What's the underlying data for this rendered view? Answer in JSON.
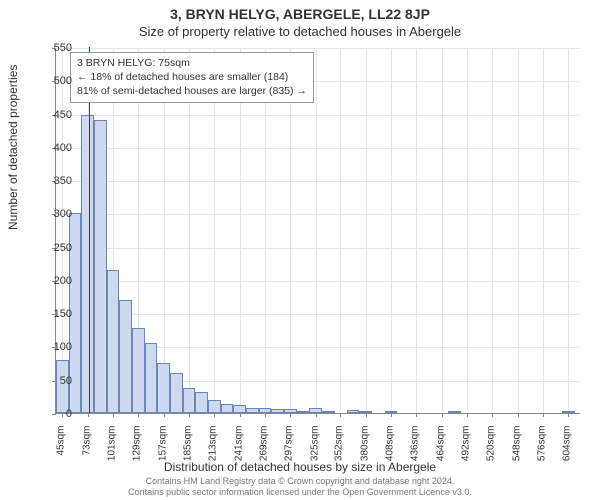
{
  "header": {
    "address": "3, BRYN HELYG, ABERGELE, LL22 8JP",
    "subtitle": "Size of property relative to detached houses in Abergele"
  },
  "chart": {
    "type": "histogram",
    "ylabel": "Number of detached properties",
    "xlabel": "Distribution of detached houses by size in Abergele",
    "ylim": [
      0,
      550
    ],
    "ytick_step": 50,
    "xlim": [
      38,
      618
    ],
    "bin_width": 14,
    "x_ticks": [
      45,
      73,
      101,
      129,
      157,
      185,
      213,
      241,
      269,
      297,
      325,
      352,
      380,
      408,
      436,
      464,
      492,
      520,
      548,
      576,
      604
    ],
    "x_tick_suffix": "sqm",
    "bars": [
      {
        "x": 45,
        "y": 80
      },
      {
        "x": 59,
        "y": 300
      },
      {
        "x": 73,
        "y": 448
      },
      {
        "x": 87,
        "y": 440
      },
      {
        "x": 101,
        "y": 215
      },
      {
        "x": 115,
        "y": 170
      },
      {
        "x": 129,
        "y": 128
      },
      {
        "x": 143,
        "y": 105
      },
      {
        "x": 157,
        "y": 75
      },
      {
        "x": 171,
        "y": 60
      },
      {
        "x": 185,
        "y": 38
      },
      {
        "x": 199,
        "y": 32
      },
      {
        "x": 213,
        "y": 20
      },
      {
        "x": 227,
        "y": 14
      },
      {
        "x": 241,
        "y": 12
      },
      {
        "x": 255,
        "y": 7
      },
      {
        "x": 269,
        "y": 8
      },
      {
        "x": 283,
        "y": 6
      },
      {
        "x": 297,
        "y": 6
      },
      {
        "x": 311,
        "y": 3
      },
      {
        "x": 325,
        "y": 8
      },
      {
        "x": 339,
        "y": 3
      },
      {
        "x": 352,
        "y": 0
      },
      {
        "x": 366,
        "y": 4
      },
      {
        "x": 380,
        "y": 2
      },
      {
        "x": 394,
        "y": 0
      },
      {
        "x": 408,
        "y": 2
      },
      {
        "x": 422,
        "y": 0
      },
      {
        "x": 436,
        "y": 0
      },
      {
        "x": 450,
        "y": 0
      },
      {
        "x": 464,
        "y": 0
      },
      {
        "x": 478,
        "y": 2
      },
      {
        "x": 492,
        "y": 0
      },
      {
        "x": 506,
        "y": 0
      },
      {
        "x": 520,
        "y": 0
      },
      {
        "x": 534,
        "y": 0
      },
      {
        "x": 548,
        "y": 0
      },
      {
        "x": 562,
        "y": 0
      },
      {
        "x": 576,
        "y": 0
      },
      {
        "x": 590,
        "y": 0
      },
      {
        "x": 604,
        "y": 2
      }
    ],
    "marker_x": 75,
    "colors": {
      "bar_fill": "#cdd9ee",
      "bar_border": "#6a85b8",
      "marker": "#cc0000",
      "grid": "#e5e5e5",
      "axis": "#888888",
      "background": "#ffffff"
    },
    "annotation": {
      "line1": "3 BRYN HELYG: 75sqm",
      "line2": "← 18% of detached houses are smaller (184)",
      "line3": "81% of semi-detached houses are larger (835) →"
    },
    "label_fontsize": 12,
    "tick_fontsize": 11
  },
  "footer": {
    "line1": "Contains HM Land Registry data © Crown copyright and database right 2024.",
    "line2": "Contains public sector information licensed under the Open Government Licence v3.0."
  }
}
